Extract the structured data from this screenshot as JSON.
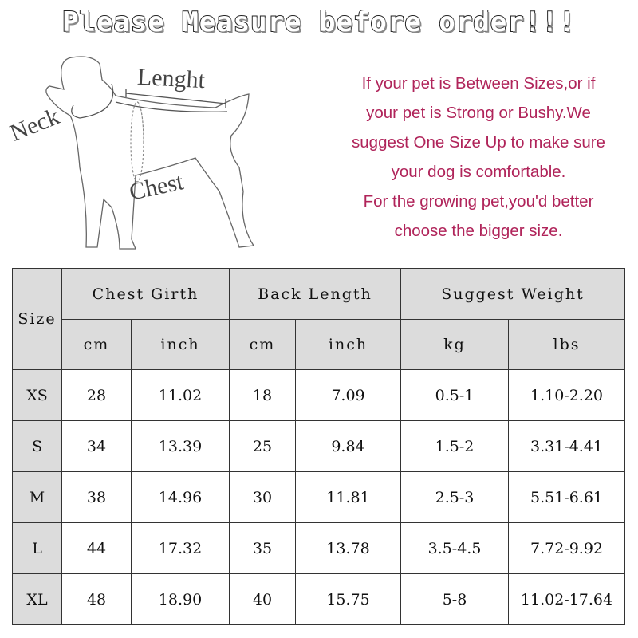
{
  "title": "Please Measure before order!!!",
  "diagram": {
    "labels": {
      "length": "Lenght",
      "neck": "Neck",
      "chest": "Chest"
    }
  },
  "advice": {
    "lines": [
      "If your pet is Between Sizes,or if",
      "your pet is Strong or Bushy.We",
      "suggest One Size Up to make sure",
      "your dog is comfortable.",
      "For the growing pet,you'd better",
      "choose the bigger size."
    ],
    "color": "#b0245a"
  },
  "table": {
    "size_header": "Size",
    "groups": [
      "Chest Girth",
      "Back Length",
      "Suggest Weight"
    ],
    "units": [
      "cm",
      "inch",
      "cm",
      "inch",
      "kg",
      "lbs"
    ],
    "rows": [
      [
        "XS",
        "28",
        "11.02",
        "18",
        "7.09",
        "0.5-1",
        "1.10-2.20"
      ],
      [
        "S",
        "34",
        "13.39",
        "25",
        "9.84",
        "1.5-2",
        "3.31-4.41"
      ],
      [
        "M",
        "38",
        "14.96",
        "30",
        "11.81",
        "2.5-3",
        "5.51-6.61"
      ],
      [
        "L",
        "44",
        "17.32",
        "35",
        "13.78",
        "3.5-4.5",
        "7.72-9.92"
      ],
      [
        "XL",
        "48",
        "18.90",
        "40",
        "15.75",
        "5-8",
        "11.02-17.64"
      ]
    ],
    "header_bg": "#dcdcdc"
  }
}
